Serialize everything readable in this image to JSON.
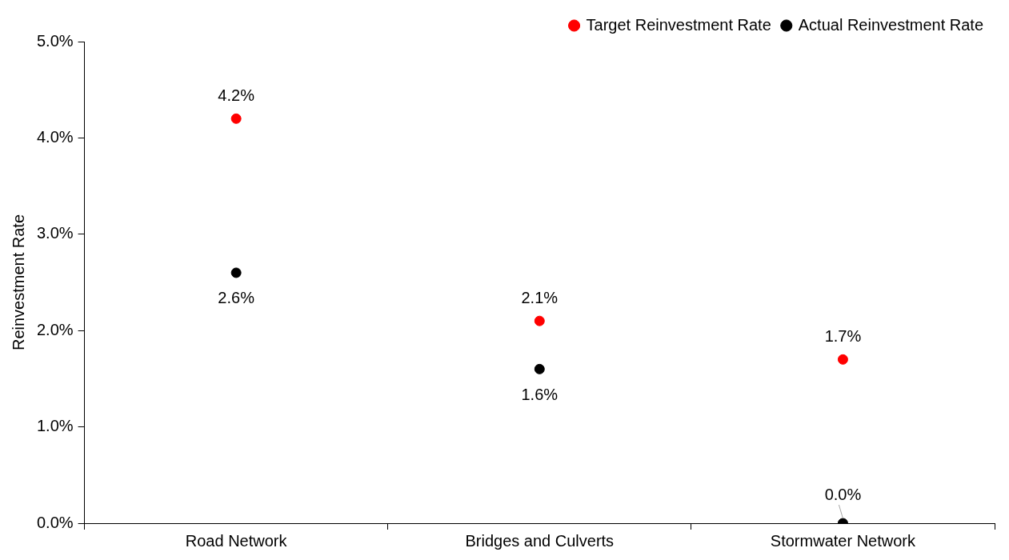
{
  "chart_data": {
    "type": "scatter",
    "ylabel": "Reinvestment Rate",
    "categories": [
      "Road Network",
      "Bridges and Culverts",
      "Stormwater Network"
    ],
    "series": [
      {
        "name": "Target Reinvestment Rate",
        "color": "#ff0000",
        "x": [
          "Road Network",
          "Bridges and Culverts",
          "Stormwater Network"
        ],
        "values": [
          4.2,
          2.1,
          1.7
        ],
        "value_labels": [
          "4.2%",
          "2.1%",
          "1.7%"
        ]
      },
      {
        "name": "Actual Reinvestment Rate",
        "color": "#000000",
        "x": [
          "Road Network",
          "Bridges and Culverts",
          "Stormwater Network"
        ],
        "values": [
          2.6,
          1.6,
          0.0
        ],
        "value_labels": [
          "2.6%",
          "1.6%",
          "0.0%"
        ]
      }
    ],
    "ylim": [
      0,
      5
    ],
    "yticks": [
      {
        "value": 0,
        "label": "0.0%"
      },
      {
        "value": 1,
        "label": "1.0%"
      },
      {
        "value": 2,
        "label": "2.0%"
      },
      {
        "value": 3,
        "label": "3.0%"
      },
      {
        "value": 4,
        "label": "4.0%"
      },
      {
        "value": 5,
        "label": "5.0%"
      }
    ],
    "grid": false,
    "legend": "top right",
    "marker": "circle"
  }
}
